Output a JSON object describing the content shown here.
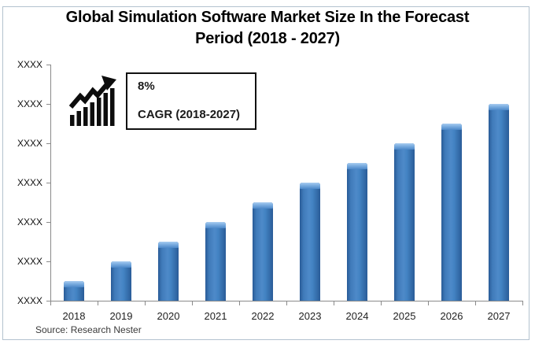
{
  "title": {
    "full": "Global Simulation Software Market Size In the Forecast Period (2018 - 2027)",
    "line1": "Global Simulation Software Market Size In the Forecast",
    "line2": "Period (2018 - 2027)"
  },
  "cagr": {
    "value": "8%",
    "label": "CAGR (2018-2027)"
  },
  "source": "Source: Research Nester",
  "chart_data": {
    "type": "bar",
    "title": "Global Simulation Software Market Size In the Forecast Period (2018 - 2027)",
    "categories": [
      "2018",
      "2019",
      "2020",
      "2021",
      "2022",
      "2023",
      "2024",
      "2025",
      "2026",
      "2027"
    ],
    "values": [
      0.5,
      1.0,
      1.5,
      2.0,
      2.5,
      3.0,
      3.5,
      4.0,
      4.5,
      5.0
    ],
    "unit": "relative gridline units (axis values masked)",
    "y_tick_labels": [
      "XXXX",
      "XXXX",
      "XXXX",
      "XXXX",
      "XXXX",
      "XXXX",
      "XXXX"
    ],
    "ylim": [
      0,
      6
    ],
    "xlabel": "",
    "ylabel": "",
    "gridlines": false,
    "legend_position": "none",
    "annotation": {
      "cagr_value": "8%",
      "cagr_label": "CAGR (2018-2027)"
    },
    "bar_color": "#3F7AB9",
    "bar_edge_color": "#295B97",
    "bar_highlight_color": "#A9CDF0",
    "axis_color": "#8A8A8A"
  }
}
